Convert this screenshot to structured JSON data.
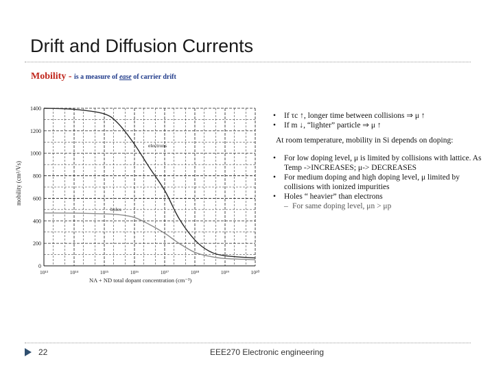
{
  "slide": {
    "title": "Drift and Diffusion Currents",
    "page_number": "22",
    "footer": "EEE270 Electronic engineering"
  },
  "mobility_heading": {
    "word": "Mobility",
    "dash": " - ",
    "part1": "is a measure of ",
    "ease": "ease",
    "part2": " of carrier drift",
    "accent_color": "#c0261c",
    "sub_color": "#1f3a8a"
  },
  "notes": {
    "b1": "If τc ↑, longer time between collisions ⇒ μ ↑",
    "b2": "If m ↓, “lighter” particle ⇒ μ ↑",
    "room_temp": "At room temperature, mobility in Si depends on doping:",
    "b3": "For low doping level, μ is limited by collisions with lattice. As Temp ->INCREASES; μ-> DECREASES",
    "b4": "For medium doping and high doping level, μ limited by collisions with ionized impurities",
    "b5": "Holes “ heavier” than electrons",
    "sub1": "For same doping level, μn > μp"
  },
  "chart_data": {
    "type": "line",
    "xscale": "log",
    "xlim": [
      10000000000000.0,
      1e+20
    ],
    "ylim": [
      0,
      1400
    ],
    "grid": true,
    "ylabel": "mobility (cm²/Vs)",
    "xlabel": "NA + ND total dopant concentration (cm⁻³)",
    "x_tick_labels": [
      "10¹³",
      "10¹⁴",
      "10¹⁵",
      "10¹⁶",
      "10¹⁷",
      "10¹⁸",
      "10¹⁹",
      "10²⁰"
    ],
    "y_tick_labels": [
      "0",
      "200",
      "400",
      "600",
      "800",
      "1000",
      "1200",
      "1400"
    ],
    "series": [
      {
        "name": "electrons",
        "x": [
          10000000000000.0,
          100000000000000.0,
          1000000000000000.0,
          3000000000000000.0,
          1e+16,
          3e+16,
          1e+17,
          3e+17,
          1e+18,
          3e+18,
          1e+19,
          1e+20
        ],
        "values": [
          1400,
          1390,
          1350,
          1260,
          1080,
          880,
          670,
          420,
          230,
          130,
          90,
          70
        ]
      },
      {
        "name": "holes",
        "x": [
          10000000000000.0,
          100000000000000.0,
          1000000000000000.0,
          3000000000000000.0,
          1e+16,
          3e+16,
          1e+17,
          3e+17,
          1e+18,
          3e+18,
          1e+19,
          1e+20
        ],
        "values": [
          470,
          468,
          462,
          455,
          430,
          370,
          290,
          200,
          120,
          85,
          65,
          55
        ]
      }
    ],
    "colors": {
      "electrons": "#2a2a2a",
      "holes": "#8a8a8a",
      "grid": "#1a1a1a"
    }
  }
}
